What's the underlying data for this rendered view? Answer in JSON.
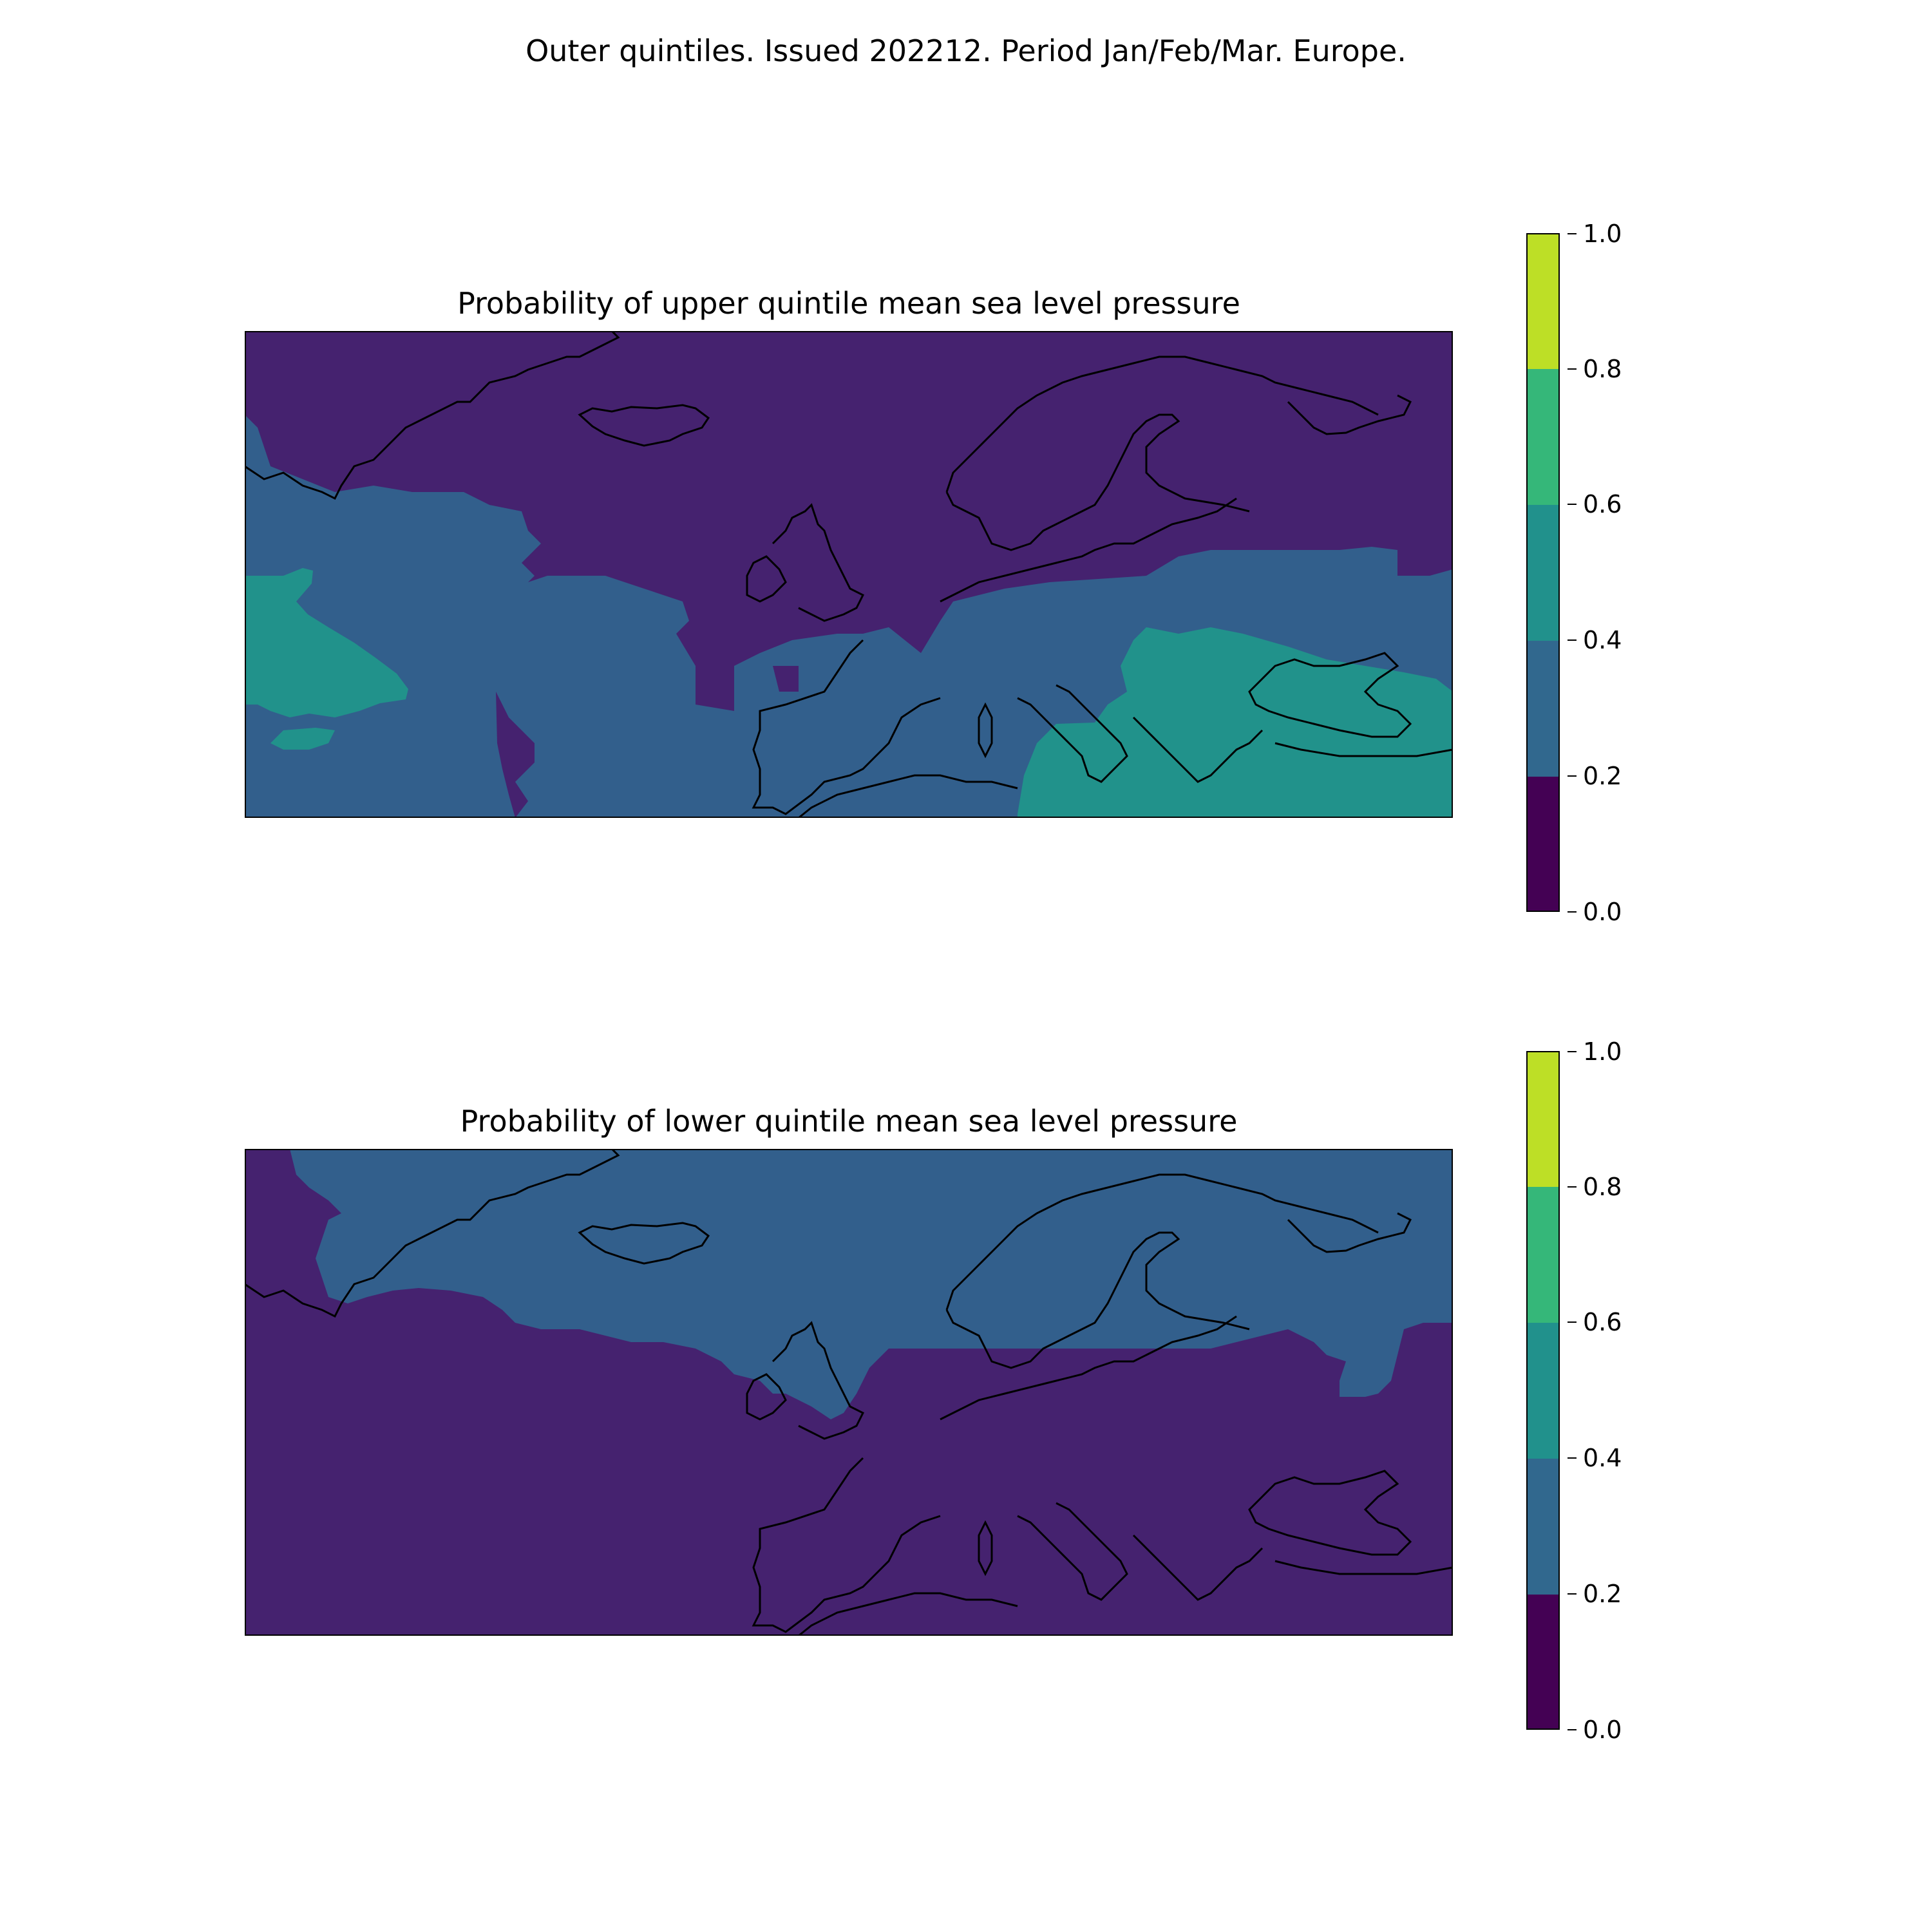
{
  "figure": {
    "suptitle": "Outer quintiles. Issued 202212. Period Jan/Feb/Mar. Europe."
  },
  "palette": {
    "bins": [
      "#440154",
      "#31688e",
      "#21918c",
      "#35b779",
      "#bddf26"
    ],
    "map_colors": {
      "class_0_0.2": "#45226f",
      "class_0.2_0.4": "#325f8c",
      "class_0.4_0.6": "#21928b",
      "coastline": "#000000"
    }
  },
  "colorbar": {
    "ticks": [
      "0.0",
      "0.2",
      "0.4",
      "0.6",
      "0.8",
      "1.0"
    ],
    "levels": [
      0.0,
      0.2,
      0.4,
      0.6,
      0.8,
      1.0
    ]
  },
  "panels": [
    {
      "id": "upper",
      "title": "Probability of upper quintile mean sea level pressure",
      "regions": [
        {
          "name": "north-atlantic-and-scandinavia",
          "class": "0-0.2"
        },
        {
          "name": "western-atlantic-band",
          "class": "0.2-0.4"
        },
        {
          "name": "central-atlantic-patch",
          "class": "0.4-0.6"
        },
        {
          "name": "iberia-mediterranean-central-europe",
          "class": "0.2-0.4"
        },
        {
          "name": "eastern-europe-balkans-black-sea",
          "class": "0.4-0.6"
        }
      ]
    },
    {
      "id": "lower",
      "title": "Probability of lower quintile mean sea level pressure",
      "regions": [
        {
          "name": "northern-europe-and-greenland-sea",
          "class": "0.2-0.4"
        },
        {
          "name": "southern-domain",
          "class": "0-0.2"
        },
        {
          "name": "labrador-sea-strip",
          "class": "0-0.2"
        }
      ]
    }
  ]
}
